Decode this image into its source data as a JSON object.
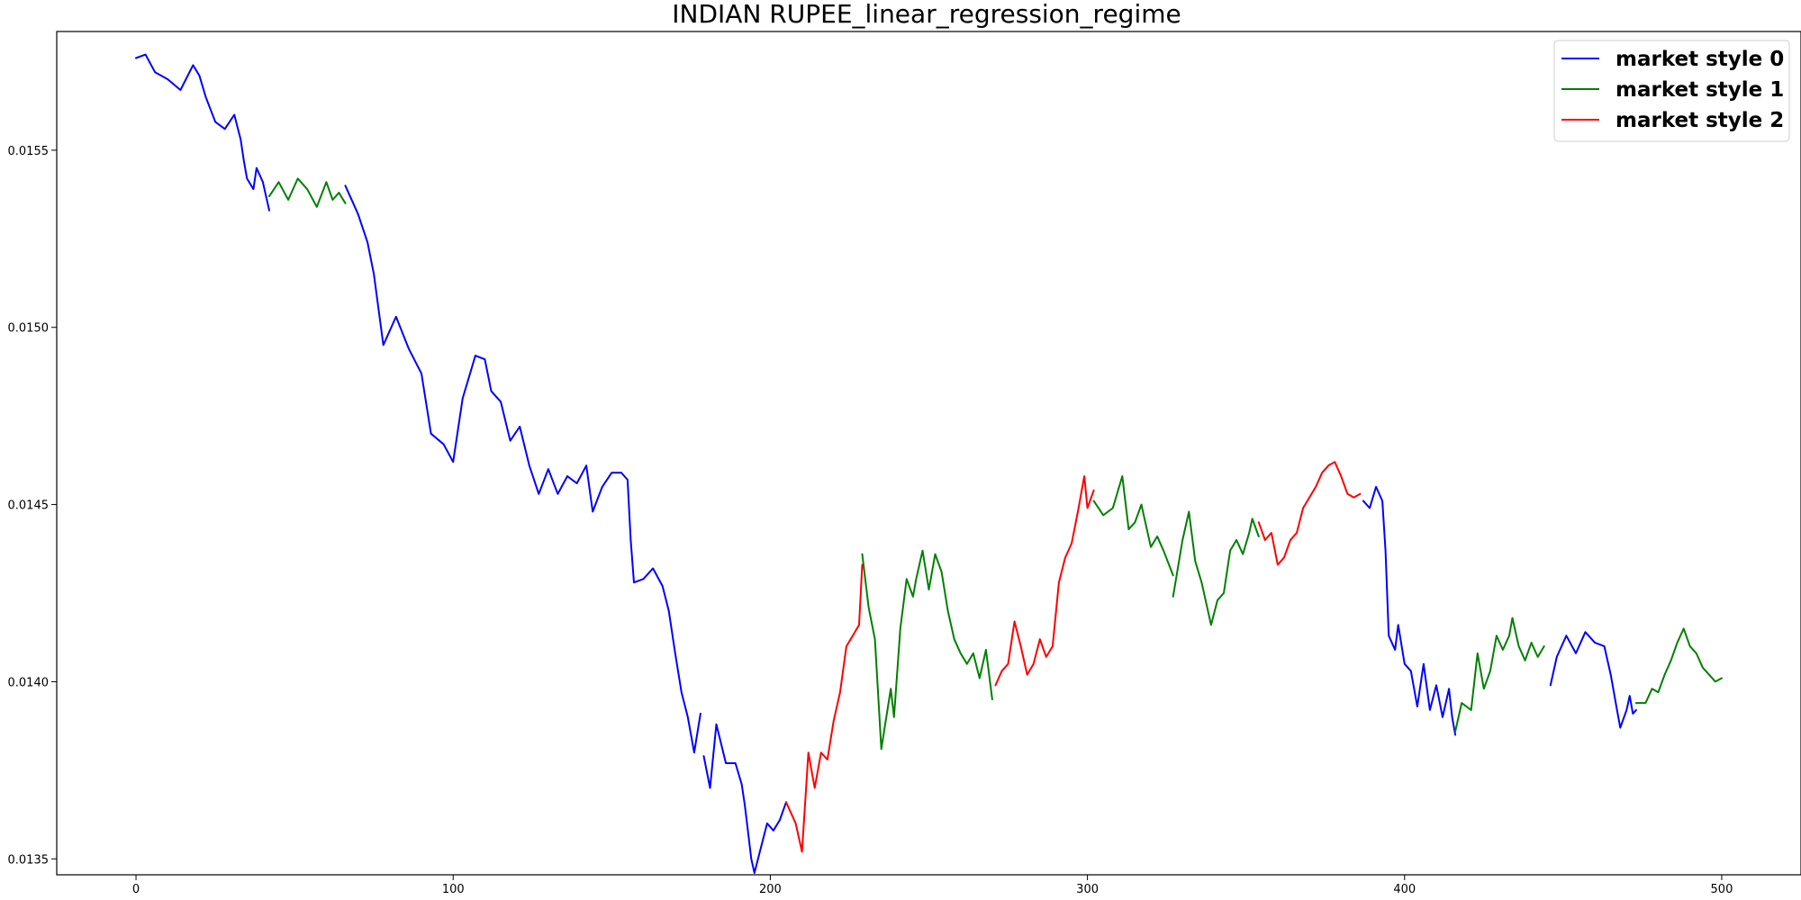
{
  "chart_data": {
    "type": "line",
    "title": "INDIAN RUPEE_linear_regression_regime",
    "xlabel": "",
    "ylabel": "",
    "xlim": [
      -25,
      525
    ],
    "ylim": [
      0.013455,
      0.015835
    ],
    "x_ticks": [
      0,
      100,
      200,
      300,
      400,
      500
    ],
    "x_tick_labels": [
      "0",
      "100",
      "200",
      "300",
      "400",
      "500"
    ],
    "y_ticks": [
      0.0135,
      0.014,
      0.0145,
      0.015,
      0.0155
    ],
    "y_tick_labels": [
      "0.0135",
      "0.0140",
      "0.0145",
      "0.0150",
      "0.0155"
    ],
    "grid": false,
    "legend_position": "top-right",
    "series": [
      {
        "name": "market style 0",
        "color": "#0000ff",
        "segments": [
          [
            [
              0,
              0.01576
            ],
            [
              3,
              0.01577
            ],
            [
              6,
              0.01572
            ],
            [
              10,
              0.0157
            ],
            [
              14,
              0.01567
            ],
            [
              18,
              0.01574
            ],
            [
              20,
              0.01571
            ],
            [
              22,
              0.01565
            ],
            [
              25,
              0.01558
            ],
            [
              28,
              0.01556
            ],
            [
              31,
              0.0156
            ],
            [
              33,
              0.01553
            ],
            [
              34,
              0.01547
            ],
            [
              35,
              0.01542
            ],
            [
              37,
              0.01539
            ],
            [
              38,
              0.01545
            ],
            [
              40,
              0.01541
            ],
            [
              42,
              0.01533
            ]
          ],
          [
            [
              66,
              0.0154
            ],
            [
              70,
              0.01532
            ],
            [
              73,
              0.01524
            ],
            [
              75,
              0.01515
            ],
            [
              78,
              0.01495
            ],
            [
              82,
              0.01503
            ],
            [
              86,
              0.01494
            ],
            [
              90,
              0.01487
            ],
            [
              93,
              0.0147
            ],
            [
              97,
              0.01467
            ],
            [
              100,
              0.01462
            ],
            [
              103,
              0.0148
            ],
            [
              107,
              0.01492
            ],
            [
              110,
              0.01491
            ],
            [
              112,
              0.01482
            ],
            [
              115,
              0.01479
            ],
            [
              118,
              0.01468
            ],
            [
              121,
              0.01472
            ],
            [
              124,
              0.01461
            ],
            [
              127,
              0.01453
            ],
            [
              130,
              0.0146
            ],
            [
              133,
              0.01453
            ],
            [
              136,
              0.01458
            ],
            [
              139,
              0.01456
            ],
            [
              142,
              0.01461
            ],
            [
              144,
              0.01448
            ],
            [
              147,
              0.01455
            ],
            [
              150,
              0.01459
            ],
            [
              153,
              0.01459
            ],
            [
              155,
              0.01457
            ],
            [
              156,
              0.0144
            ],
            [
              157,
              0.01428
            ],
            [
              160,
              0.01429
            ],
            [
              163,
              0.01432
            ],
            [
              166,
              0.01427
            ],
            [
              168,
              0.0142
            ],
            [
              170,
              0.01408
            ],
            [
              172,
              0.01397
            ],
            [
              174,
              0.0139
            ],
            [
              176,
              0.0138
            ],
            [
              178,
              0.01391
            ]
          ],
          [
            [
              179,
              0.01379
            ],
            [
              181,
              0.0137
            ],
            [
              183,
              0.01388
            ],
            [
              186,
              0.01377
            ],
            [
              189,
              0.01377
            ],
            [
              191,
              0.01371
            ],
            [
              192,
              0.01365
            ],
            [
              194,
              0.0135
            ],
            [
              195,
              0.01346
            ],
            [
              197,
              0.01353
            ],
            [
              199,
              0.0136
            ],
            [
              201,
              0.01358
            ],
            [
              203,
              0.01361
            ],
            [
              205,
              0.01366
            ]
          ],
          [
            [
              387,
              0.01451
            ],
            [
              389,
              0.01449
            ],
            [
              391,
              0.01455
            ],
            [
              393,
              0.01451
            ],
            [
              394,
              0.01437
            ],
            [
              395,
              0.01413
            ],
            [
              397,
              0.01409
            ],
            [
              398,
              0.01416
            ],
            [
              400,
              0.01405
            ],
            [
              402,
              0.01403
            ],
            [
              404,
              0.01393
            ],
            [
              406,
              0.01405
            ],
            [
              408,
              0.01392
            ],
            [
              410,
              0.01399
            ],
            [
              412,
              0.0139
            ],
            [
              414,
              0.01398
            ],
            [
              415,
              0.0139
            ],
            [
              416,
              0.01385
            ]
          ],
          [
            [
              446,
              0.01399
            ],
            [
              448,
              0.01407
            ],
            [
              451,
              0.01413
            ],
            [
              454,
              0.01408
            ],
            [
              457,
              0.01414
            ],
            [
              460,
              0.01411
            ],
            [
              463,
              0.0141
            ],
            [
              465,
              0.01402
            ],
            [
              467,
              0.01392
            ],
            [
              468,
              0.01387
            ],
            [
              470,
              0.01392
            ],
            [
              471,
              0.01396
            ],
            [
              472,
              0.01391
            ],
            [
              473,
              0.01392
            ]
          ]
        ]
      },
      {
        "name": "market style 1",
        "color": "#008000",
        "segments": [
          [
            [
              42,
              0.01537
            ],
            [
              45,
              0.01541
            ],
            [
              48,
              0.01536
            ],
            [
              51,
              0.01542
            ],
            [
              54,
              0.01539
            ],
            [
              57,
              0.01534
            ],
            [
              60,
              0.01541
            ],
            [
              62,
              0.01536
            ],
            [
              64,
              0.01538
            ],
            [
              66,
              0.01535
            ]
          ],
          [
            [
              229,
              0.01436
            ],
            [
              231,
              0.01421
            ],
            [
              233,
              0.01412
            ],
            [
              235,
              0.01381
            ],
            [
              238,
              0.01398
            ],
            [
              239,
              0.0139
            ],
            [
              241,
              0.01415
            ],
            [
              243,
              0.01429
            ],
            [
              245,
              0.01424
            ],
            [
              246,
              0.01429
            ],
            [
              248,
              0.01437
            ],
            [
              250,
              0.01426
            ],
            [
              252,
              0.01436
            ],
            [
              254,
              0.01431
            ],
            [
              256,
              0.0142
            ],
            [
              258,
              0.01412
            ],
            [
              260,
              0.01408
            ],
            [
              262,
              0.01405
            ],
            [
              264,
              0.01408
            ],
            [
              266,
              0.01401
            ],
            [
              268,
              0.01409
            ],
            [
              270,
              0.01395
            ]
          ],
          [
            [
              302,
              0.01451
            ],
            [
              305,
              0.01447
            ],
            [
              308,
              0.01449
            ],
            [
              311,
              0.01458
            ],
            [
              313,
              0.01443
            ],
            [
              315,
              0.01445
            ],
            [
              317,
              0.0145
            ],
            [
              320,
              0.01438
            ],
            [
              322,
              0.01441
            ],
            [
              324,
              0.01437
            ],
            [
              327,
              0.0143
            ]
          ],
          [
            [
              327,
              0.01424
            ],
            [
              330,
              0.0144
            ],
            [
              332,
              0.01448
            ],
            [
              334,
              0.01434
            ],
            [
              336,
              0.01428
            ],
            [
              339,
              0.01416
            ],
            [
              341,
              0.01423
            ],
            [
              343,
              0.01425
            ],
            [
              345,
              0.01437
            ],
            [
              347,
              0.0144
            ],
            [
              349,
              0.01436
            ],
            [
              351,
              0.01442
            ],
            [
              352,
              0.01446
            ],
            [
              354,
              0.01441
            ]
          ],
          [
            [
              416,
              0.01386
            ],
            [
              418,
              0.01394
            ],
            [
              421,
              0.01392
            ],
            [
              423,
              0.01408
            ],
            [
              425,
              0.01398
            ],
            [
              427,
              0.01403
            ],
            [
              429,
              0.01413
            ],
            [
              431,
              0.01409
            ],
            [
              433,
              0.01413
            ],
            [
              434,
              0.01418
            ],
            [
              436,
              0.0141
            ],
            [
              438,
              0.01406
            ],
            [
              440,
              0.01411
            ],
            [
              442,
              0.01407
            ],
            [
              444,
              0.0141
            ]
          ],
          [
            [
              473,
              0.01394
            ],
            [
              476,
              0.01394
            ],
            [
              478,
              0.01398
            ],
            [
              480,
              0.01397
            ],
            [
              482,
              0.01402
            ],
            [
              484,
              0.01406
            ],
            [
              486,
              0.01411
            ],
            [
              488,
              0.01415
            ],
            [
              490,
              0.0141
            ],
            [
              492,
              0.01408
            ],
            [
              494,
              0.01404
            ],
            [
              496,
              0.01402
            ],
            [
              498,
              0.014
            ],
            [
              500,
              0.01401
            ]
          ]
        ]
      },
      {
        "name": "market style 2",
        "color": "#ff0000",
        "segments": [
          [
            [
              205,
              0.01366
            ],
            [
              208,
              0.0136
            ],
            [
              210,
              0.01352
            ],
            [
              212,
              0.0138
            ],
            [
              214,
              0.0137
            ],
            [
              216,
              0.0138
            ],
            [
              218,
              0.01378
            ],
            [
              220,
              0.01389
            ],
            [
              222,
              0.01397
            ],
            [
              224,
              0.0141
            ],
            [
              226,
              0.01413
            ],
            [
              228,
              0.01416
            ],
            [
              229,
              0.01433
            ]
          ],
          [
            [
              271,
              0.01399
            ],
            [
              273,
              0.01403
            ],
            [
              275,
              0.01405
            ],
            [
              277,
              0.01417
            ],
            [
              279,
              0.0141
            ],
            [
              281,
              0.01402
            ],
            [
              283,
              0.01405
            ],
            [
              285,
              0.01412
            ],
            [
              287,
              0.01407
            ],
            [
              289,
              0.0141
            ],
            [
              291,
              0.01428
            ],
            [
              293,
              0.01435
            ],
            [
              295,
              0.01439
            ],
            [
              297,
              0.01448
            ],
            [
              299,
              0.01458
            ],
            [
              300,
              0.01449
            ],
            [
              302,
              0.01454
            ]
          ],
          [
            [
              354,
              0.01445
            ],
            [
              356,
              0.0144
            ],
            [
              358,
              0.01442
            ],
            [
              360,
              0.01433
            ],
            [
              362,
              0.01435
            ],
            [
              364,
              0.0144
            ],
            [
              366,
              0.01442
            ],
            [
              368,
              0.01449
            ],
            [
              370,
              0.01452
            ],
            [
              372,
              0.01455
            ],
            [
              374,
              0.01459
            ],
            [
              376,
              0.01461
            ],
            [
              378,
              0.01462
            ],
            [
              380,
              0.01458
            ],
            [
              382,
              0.01453
            ],
            [
              384,
              0.01452
            ],
            [
              386,
              0.01453
            ]
          ]
        ]
      }
    ]
  }
}
